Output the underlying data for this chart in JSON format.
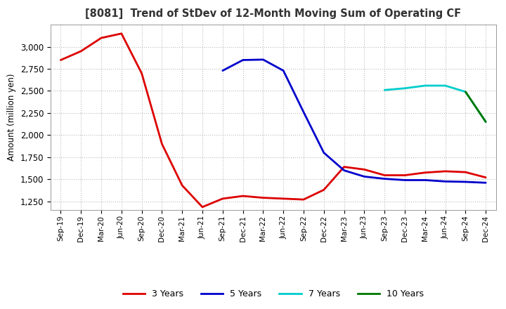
{
  "title": "[8081]  Trend of StDev of 12-Month Moving Sum of Operating CF",
  "ylabel": "Amount (million yen)",
  "background_color": "#ffffff",
  "plot_bg_color": "#ffffff",
  "grid_color": "#bbbbbb",
  "ylim": [
    1150,
    3250
  ],
  "yticks": [
    1250,
    1500,
    1750,
    2000,
    2250,
    2500,
    2750,
    3000
  ],
  "series": {
    "3 Years": {
      "color": "#dd0000",
      "x": [
        "Sep-19",
        "Dec-19",
        "Mar-20",
        "Jun-20",
        "Sep-20",
        "Dec-20",
        "Mar-21",
        "Jun-21",
        "Sep-21",
        "Dec-21",
        "Mar-22",
        "Jun-22",
        "Sep-22",
        "Dec-22",
        "Mar-23",
        "Jun-23",
        "Sep-23",
        "Dec-23",
        "Mar-24",
        "Jun-24",
        "Sep-24",
        "Dec-24"
      ],
      "y": [
        2850,
        2950,
        3100,
        3150,
        2700,
        1900,
        1430,
        1185,
        1280,
        1310,
        1290,
        1280,
        1270,
        1380,
        1640,
        1610,
        1545,
        1545,
        1575,
        1590,
        1580,
        1520
      ]
    },
    "5 Years": {
      "color": "#0000cc",
      "x": [
        "Sep-21",
        "Dec-21",
        "Mar-22",
        "Jun-22",
        "Sep-22",
        "Dec-22",
        "Mar-23",
        "Jun-23",
        "Sep-23",
        "Dec-23",
        "Mar-24",
        "Jun-24",
        "Sep-24",
        "Dec-24"
      ],
      "y": [
        2730,
        2850,
        2855,
        2730,
        2260,
        1800,
        1600,
        1530,
        1505,
        1490,
        1490,
        1475,
        1470,
        1460
      ]
    },
    "7 Years": {
      "color": "#00cccc",
      "x": [
        "Sep-23",
        "Dec-23",
        "Mar-24",
        "Jun-24",
        "Sep-24",
        "Dec-24"
      ],
      "y": [
        2510,
        2530,
        2560,
        2560,
        2490,
        2150
      ]
    },
    "10 Years": {
      "color": "#007700",
      "x": [
        "Sep-24",
        "Dec-24"
      ],
      "y": [
        2490,
        2150
      ]
    }
  },
  "xticks": [
    "Sep-19",
    "Dec-19",
    "Mar-20",
    "Jun-20",
    "Sep-20",
    "Dec-20",
    "Mar-21",
    "Jun-21",
    "Sep-21",
    "Dec-21",
    "Mar-22",
    "Jun-22",
    "Sep-22",
    "Dec-22",
    "Mar-23",
    "Jun-23",
    "Sep-23",
    "Dec-23",
    "Mar-24",
    "Jun-24",
    "Sep-24",
    "Dec-24"
  ],
  "legend_labels": [
    "3 Years",
    "5 Years",
    "7 Years",
    "10 Years"
  ],
  "legend_colors": [
    "#dd0000",
    "#0000cc",
    "#00cccc",
    "#007700"
  ]
}
